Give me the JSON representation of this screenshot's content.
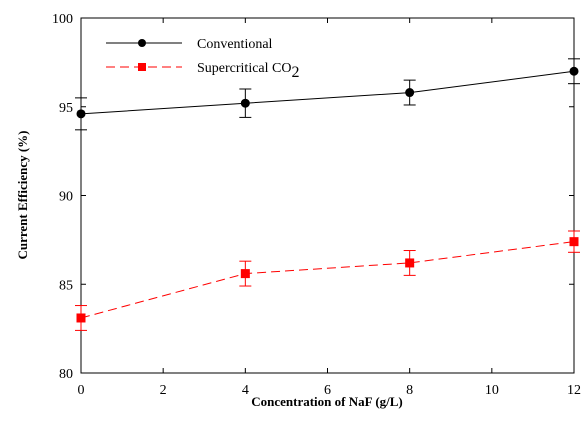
{
  "chart_data": {
    "type": "line",
    "title": "",
    "xlabel": "Concentration of NaF (g/L)",
    "ylabel": "Current Efficiency (%)",
    "xlim": [
      0,
      12
    ],
    "ylim": [
      80,
      100
    ],
    "xticks": [
      "0",
      "2",
      "4",
      "6",
      "8",
      "10",
      "12"
    ],
    "yticks": [
      "80",
      "85",
      "90",
      "95",
      "100"
    ],
    "grid": false,
    "legend_position": "top-left",
    "x": [
      0,
      4,
      8,
      12
    ],
    "series": [
      {
        "name": "Conventional",
        "name_main": "Supercritical CO",
        "color": "#000000",
        "marker": "circle",
        "line_style": "solid",
        "values": [
          94.6,
          95.2,
          95.8,
          97.0
        ],
        "error": [
          0.9,
          0.8,
          0.7,
          0.7
        ]
      },
      {
        "name": "Supercritical CO2",
        "name_main": "Supercritical CO",
        "name_sub": "2",
        "color": "#ff0000",
        "marker": "square",
        "line_style": "dashed",
        "values": [
          83.1,
          85.6,
          86.2,
          87.4
        ],
        "error": [
          0.7,
          0.7,
          0.7,
          0.6
        ]
      }
    ]
  }
}
